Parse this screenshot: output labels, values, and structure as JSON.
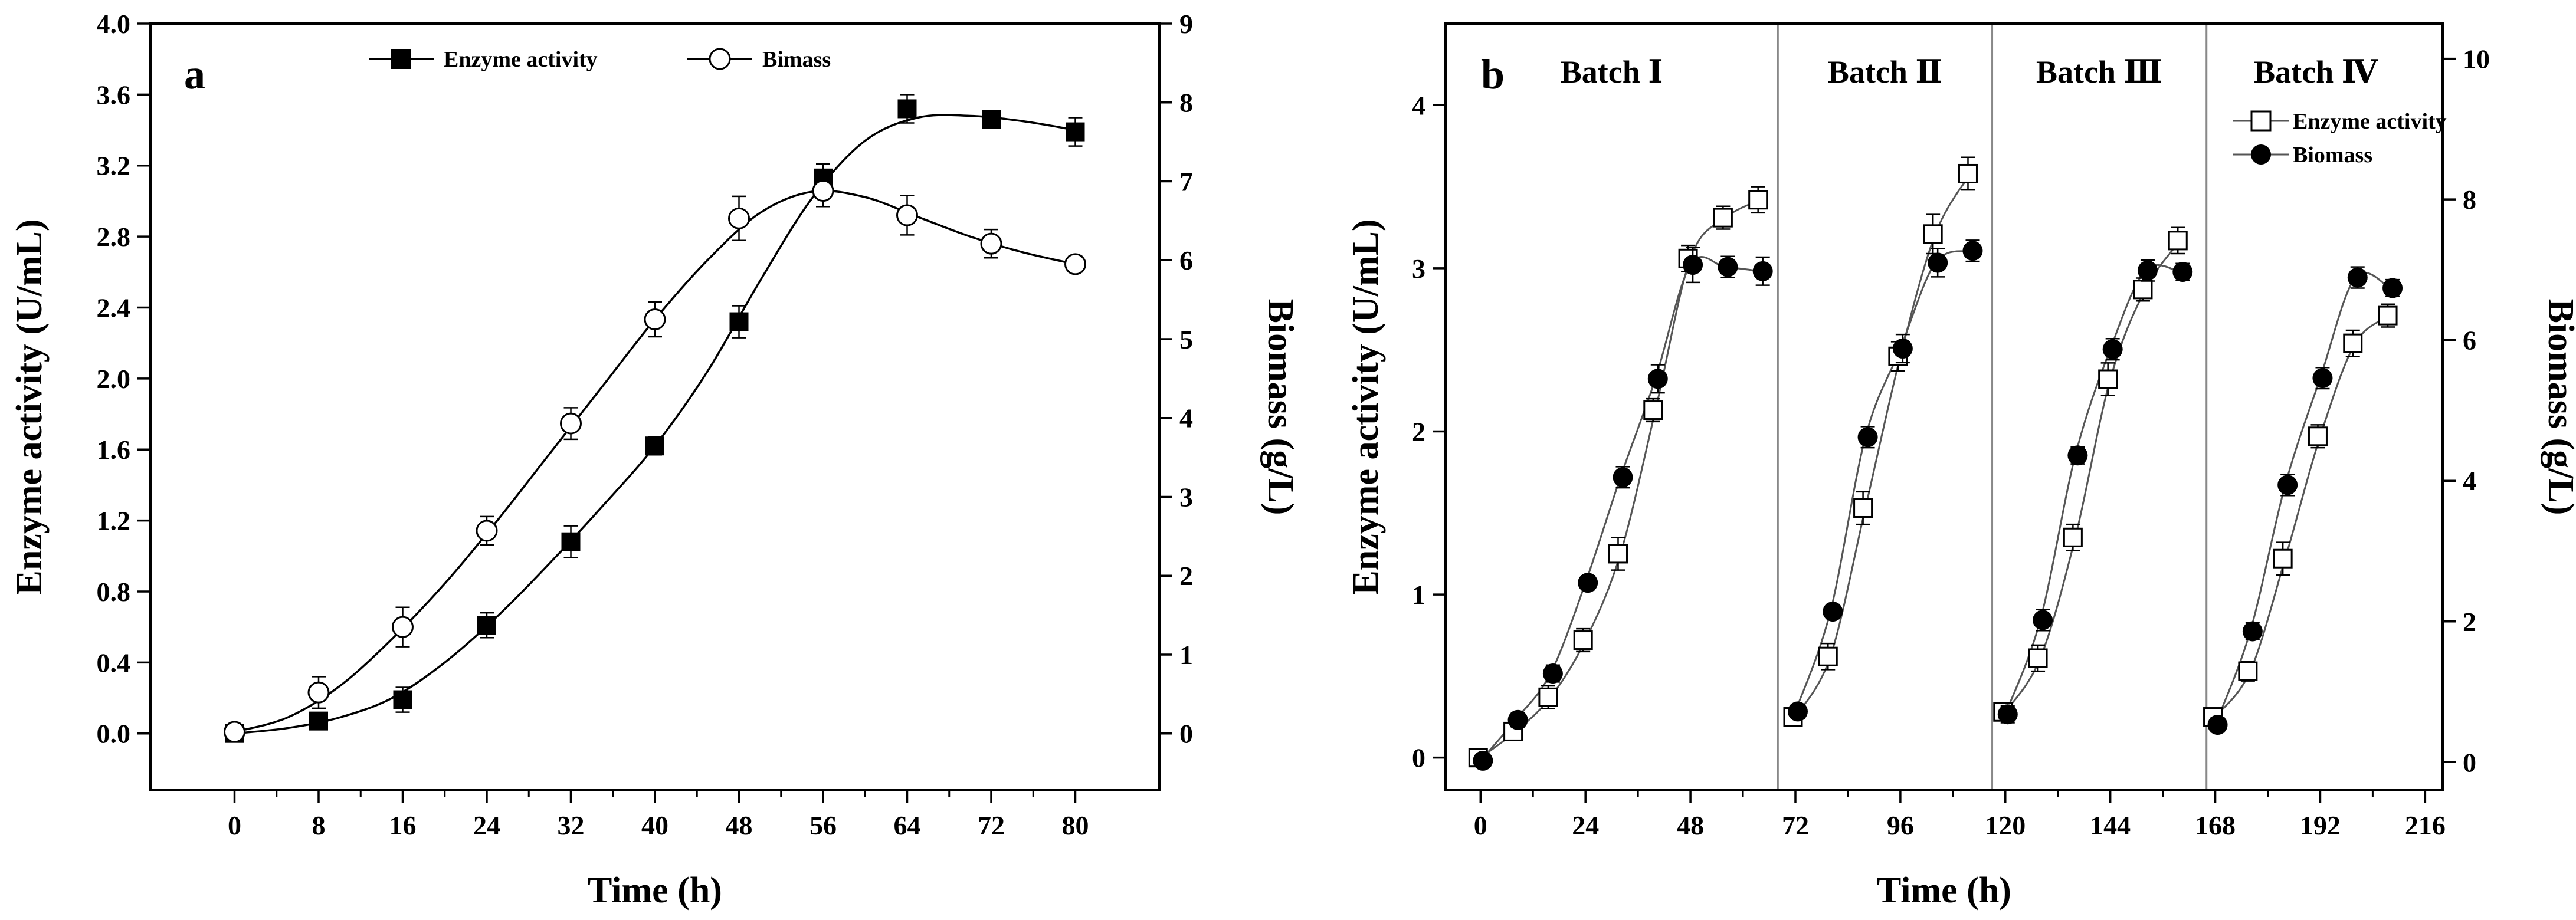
{
  "chart_data": [
    {
      "type": "line",
      "panel_label": "a",
      "xlabel": "Time (h)",
      "ylabel_left": "Enzyme activity (U/mL)",
      "ylabel_right": "Biomass (g/L)",
      "xlim": [
        -8,
        88
      ],
      "ylim_left": [
        -0.32,
        4.0
      ],
      "ylim_right": [
        -0.72,
        9.0
      ],
      "x_ticks": [
        0,
        8,
        16,
        24,
        32,
        40,
        48,
        56,
        64,
        72,
        80
      ],
      "y_ticks_left": [
        0.0,
        0.4,
        0.8,
        1.2,
        1.6,
        2.0,
        2.4,
        2.8,
        3.2,
        3.6,
        4.0
      ],
      "y_tick_labels_left": [
        "0.0",
        "0.4",
        "0.8",
        "1.2",
        "1.6",
        "2.0",
        "2.4",
        "2.8",
        "3.2",
        "3.6",
        "4.0"
      ],
      "y_ticks_right": [
        0,
        1,
        2,
        3,
        4,
        5,
        6,
        7,
        8,
        9
      ],
      "legend_position": "top-center",
      "series": [
        {
          "name": "Enzyme activity",
          "axis": "left",
          "marker": "filled-square",
          "x": [
            0,
            8,
            16,
            24,
            32,
            40,
            48,
            56,
            64,
            72,
            80
          ],
          "y": [
            0.0,
            0.07,
            0.19,
            0.61,
            1.08,
            1.62,
            2.32,
            3.13,
            3.52,
            3.46,
            3.39
          ],
          "err": [
            0.02,
            0.03,
            0.07,
            0.07,
            0.09,
            0.05,
            0.09,
            0.08,
            0.08,
            0.05,
            0.08
          ],
          "fit_x": [
            0,
            5,
            10,
            15,
            20,
            25,
            30,
            35,
            40,
            45,
            50,
            55,
            60,
            65,
            70,
            75,
            80
          ],
          "fit_y": [
            0.0,
            0.03,
            0.09,
            0.2,
            0.4,
            0.66,
            0.96,
            1.28,
            1.62,
            2.04,
            2.55,
            3.02,
            3.34,
            3.47,
            3.48,
            3.45,
            3.4
          ]
        },
        {
          "name": "Bimass",
          "axis": "right",
          "marker": "open-circle",
          "x": [
            0,
            8,
            16,
            24,
            32,
            40,
            48,
            56,
            64,
            72,
            80
          ],
          "y": [
            0.02,
            0.52,
            1.35,
            2.57,
            3.93,
            5.25,
            6.53,
            6.88,
            6.57,
            6.21,
            5.95
          ],
          "err": [
            0.05,
            0.2,
            0.25,
            0.18,
            0.2,
            0.22,
            0.28,
            0.2,
            0.25,
            0.18,
            0.1
          ],
          "fit_x": [
            0,
            5,
            10,
            15,
            20,
            25,
            30,
            35,
            40,
            45,
            50,
            55,
            60,
            65,
            70,
            75,
            80
          ],
          "fit_y": [
            0.02,
            0.2,
            0.6,
            1.2,
            1.9,
            2.7,
            3.55,
            4.4,
            5.25,
            6.0,
            6.6,
            6.87,
            6.8,
            6.55,
            6.3,
            6.1,
            5.95
          ]
        }
      ]
    },
    {
      "type": "line",
      "panel_label": "b",
      "xlabel": "Time (h)",
      "ylabel_left": "Enzyme activity (U/mL)",
      "ylabel_right": "Biomass (g/L)",
      "xlim": [
        -8,
        220
      ],
      "ylim_left": [
        -0.2,
        4.5
      ],
      "ylim_right": [
        -0.4,
        10.5
      ],
      "x_ticks": [
        0,
        24,
        48,
        72,
        96,
        120,
        144,
        168,
        192,
        216
      ],
      "y_ticks_left": [
        0,
        1,
        2,
        3,
        4
      ],
      "y_ticks_right": [
        0,
        2,
        4,
        6,
        8,
        10
      ],
      "batch_dividers": [
        68,
        117,
        166
      ],
      "batches": [
        {
          "label": "Batch Ⅰ",
          "x_center": 30
        },
        {
          "label": "Batch Ⅱ",
          "x_center": 92.5
        },
        {
          "label": "Batch Ⅲ",
          "x_center": 141.5
        },
        {
          "label": "Batch Ⅳ",
          "x_center": 191
        }
      ],
      "legend_position": "top-right",
      "series": [
        {
          "name": "Enzyme activity",
          "axis": "left",
          "marker": "open-square",
          "segments": [
            {
              "x": [
                0,
                8,
                16,
                24,
                32,
                40,
                48,
                56,
                64
              ],
              "y": [
                0.0,
                0.16,
                0.37,
                0.72,
                1.25,
                2.13,
                3.06,
                3.31,
                3.42
              ],
              "err": [
                0.04,
                0.05,
                0.07,
                0.07,
                0.1,
                0.07,
                0.08,
                0.07,
                0.08
              ]
            },
            {
              "x": [
                72,
                80,
                88,
                96,
                104,
                112
              ],
              "y": [
                0.25,
                0.62,
                1.53,
                2.46,
                3.21,
                3.58
              ],
              "err": [
                0.05,
                0.08,
                0.1,
                0.09,
                0.12,
                0.1
              ]
            },
            {
              "x": [
                120,
                128,
                136,
                144,
                152,
                160
              ],
              "y": [
                0.28,
                0.61,
                1.35,
                2.32,
                2.87,
                3.17
              ],
              "err": [
                0.05,
                0.08,
                0.08,
                0.1,
                0.07,
                0.08
              ]
            },
            {
              "x": [
                168,
                176,
                184,
                192,
                200,
                208
              ],
              "y": [
                0.25,
                0.53,
                1.22,
                1.97,
                2.54,
                2.71
              ],
              "err": [
                0.05,
                0.06,
                0.1,
                0.07,
                0.08,
                0.07
              ]
            }
          ]
        },
        {
          "name": "Biomass",
          "axis": "right",
          "marker": "filled-circle",
          "segments": [
            {
              "x": [
                0,
                8,
                16,
                24,
                32,
                40,
                48,
                56,
                64
              ],
              "y": [
                0.02,
                0.6,
                1.26,
                2.55,
                4.05,
                5.45,
                7.07,
                7.04,
                6.98
              ],
              "err": [
                0.05,
                0.1,
                0.12,
                0.1,
                0.15,
                0.2,
                0.25,
                0.15,
                0.2
              ]
            },
            {
              "x": [
                72,
                80,
                88,
                96,
                104,
                112
              ],
              "y": [
                0.72,
                2.14,
                4.62,
                5.88,
                7.1,
                7.27
              ],
              "err": [
                0.1,
                0.1,
                0.15,
                0.2,
                0.2,
                0.15
              ]
            },
            {
              "x": [
                120,
                128,
                136,
                144,
                152,
                160
              ],
              "y": [
                0.68,
                2.02,
                4.36,
                5.87,
                6.99,
                6.97
              ],
              "err": [
                0.12,
                0.15,
                0.12,
                0.15,
                0.15,
                0.12
              ]
            },
            {
              "x": [
                168,
                176,
                184,
                192,
                200,
                208
              ],
              "y": [
                0.53,
                1.86,
                3.94,
                5.46,
                6.89,
                6.74
              ],
              "err": [
                0.1,
                0.12,
                0.15,
                0.15,
                0.15,
                0.12
              ]
            }
          ]
        }
      ]
    }
  ]
}
